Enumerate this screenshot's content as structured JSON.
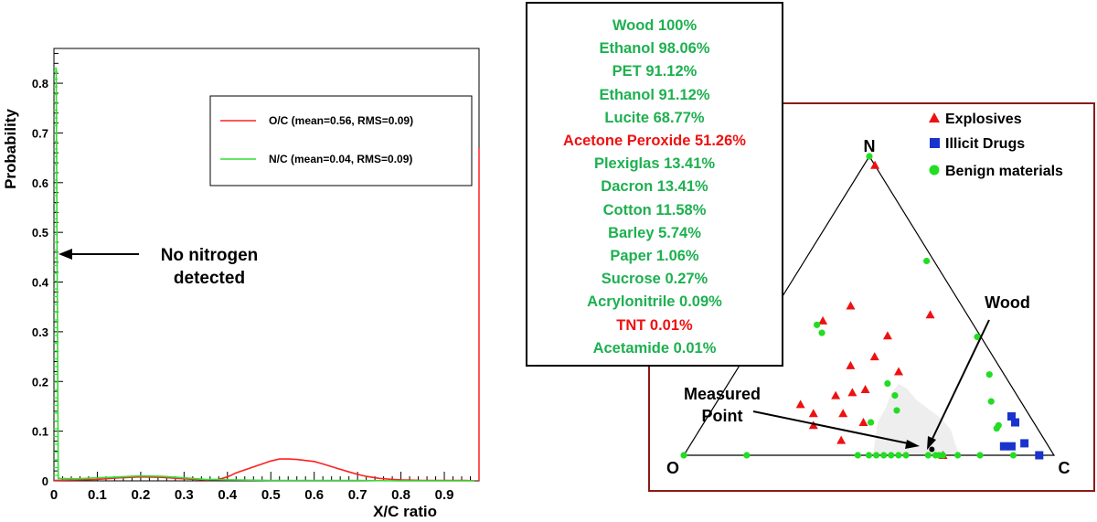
{
  "chart_data": [
    {
      "type": "line",
      "xlabel": "X/C ratio",
      "ylabel": "Probability",
      "xlim": [
        0,
        0.98
      ],
      "ylim": [
        0,
        0.87
      ],
      "x_ticks": [
        "0",
        "0.1",
        "0.2",
        "0.3",
        "0.4",
        "0.5",
        "0.6",
        "0.7",
        "0.8",
        "0.9"
      ],
      "y_ticks": [
        "0",
        "0.1",
        "0.2",
        "0.3",
        "0.4",
        "0.5",
        "0.6",
        "0.7",
        "0.8"
      ],
      "legend_position": "top-right",
      "series": [
        {
          "name": "O/C (mean=0.56, RMS=0.09)",
          "color": "#ff2020",
          "x": [
            0,
            0.05,
            0.1,
            0.15,
            0.2,
            0.25,
            0.3,
            0.35,
            0.38,
            0.4,
            0.42,
            0.45,
            0.48,
            0.5,
            0.52,
            0.54,
            0.56,
            0.58,
            0.6,
            0.62,
            0.65,
            0.68,
            0.7,
            0.72,
            0.75,
            0.78,
            0.8,
            0.85,
            0.9,
            0.95,
            0.97
          ],
          "y": [
            0.001,
            0.002,
            0.003,
            0.006,
            0.008,
            0.007,
            0.004,
            0.002,
            0.003,
            0.008,
            0.016,
            0.025,
            0.034,
            0.04,
            0.044,
            0.044,
            0.043,
            0.041,
            0.039,
            0.034,
            0.026,
            0.018,
            0.013,
            0.009,
            0.005,
            0.003,
            0.002,
            0.001,
            0.001,
            0.001,
            0.0
          ]
        },
        {
          "name": "N/C (mean=0.04, RMS=0.09)",
          "color": "#33dd33",
          "x": [
            0,
            0.005,
            0.01,
            0.05,
            0.1,
            0.15,
            0.2,
            0.25,
            0.3,
            0.35,
            0.4,
            0.5,
            0.6,
            0.7,
            0.8,
            0.9,
            0.97
          ],
          "y": [
            0.83,
            0.83,
            0.005,
            0.004,
            0.006,
            0.008,
            0.01,
            0.009,
            0.006,
            0.003,
            0.002,
            0.001,
            0.001,
            0.001,
            0.0,
            0.0,
            0.0
          ]
        }
      ],
      "annotations": [
        "No nitrogen",
        "detected"
      ]
    },
    {
      "type": "scatter",
      "subtype": "ternary",
      "vertex_labels": [
        "N",
        "O",
        "C"
      ],
      "legend_position": "top-right",
      "series": [
        {
          "name": "Explosives",
          "color": "#ee1111",
          "marker": "triangle",
          "points": [
            [
              0.47,
              0.1,
              0.43
            ],
            [
              0.5,
              0.3,
              0.2
            ],
            [
              0.45,
              0.4,
              0.15
            ],
            [
              0.4,
              0.25,
              0.35
            ],
            [
              0.33,
              0.32,
              0.35
            ],
            [
              0.3,
              0.4,
              0.3
            ],
            [
              0.28,
              0.28,
              0.44
            ],
            [
              0.22,
              0.4,
              0.38
            ],
            [
              0.21,
              0.44,
              0.35
            ],
            [
              0.2,
              0.49,
              0.31
            ],
            [
              0.17,
              0.6,
              0.23
            ],
            [
              0.14,
              0.58,
              0.28
            ],
            [
              0.14,
              0.5,
              0.36
            ],
            [
              0.1,
              0.6,
              0.3
            ],
            [
              0.11,
              0.46,
              0.43
            ],
            [
              0.05,
              0.55,
              0.4
            ],
            [
              0.0,
              0.3,
              0.7
            ],
            [
              0.97,
              0.0,
              0.03
            ]
          ]
        },
        {
          "name": "Illicit Drugs",
          "color": "#1a33cc",
          "marker": "square",
          "points": [
            [
              0.11,
              0.05,
              0.84
            ],
            [
              0.13,
              0.05,
              0.82
            ],
            [
              0.03,
              0.1,
              0.87
            ],
            [
              0.04,
              0.06,
              0.9
            ],
            [
              0.03,
              0.12,
              0.85
            ],
            [
              0.0,
              0.04,
              0.96
            ]
          ]
        },
        {
          "name": "Benign materials",
          "color": "#22dd22",
          "marker": "circle",
          "points": [
            [
              1.0,
              0.0,
              0.0
            ],
            [
              0.61,
              0.63,
              0.25
            ],
            [
              0.65,
              0.63,
              0.21
            ],
            [
              0.65,
              0.02,
              0.33
            ],
            [
              0.46,
              0.73,
              0.0
            ],
            [
              0.4,
              0.01,
              0.6
            ],
            [
              0.27,
              0.04,
              0.69
            ],
            [
              0.2,
              0.33,
              0.47
            ],
            [
              0.24,
              0.33,
              0.43
            ],
            [
              0.15,
              0.35,
              0.5
            ],
            [
              0.18,
              0.08,
              0.74
            ],
            [
              0.11,
              0.44,
              0.45
            ],
            [
              0.1,
              0.1,
              0.8
            ],
            [
              0.09,
              0.11,
              0.8
            ],
            [
              0.0,
              1.0,
              0.0
            ],
            [
              0.0,
              0.83,
              0.17
            ],
            [
              0.0,
              0.53,
              0.47
            ],
            [
              0.0,
              0.5,
              0.5
            ],
            [
              0.0,
              0.48,
              0.52
            ],
            [
              0.0,
              0.46,
              0.54
            ],
            [
              0.0,
              0.44,
              0.56
            ],
            [
              0.0,
              0.42,
              0.58
            ],
            [
              0.0,
              0.4,
              0.6
            ],
            [
              0.0,
              0.34,
              0.66
            ],
            [
              0.0,
              0.32,
              0.68
            ],
            [
              0.0,
              0.3,
              0.7
            ],
            [
              0.0,
              0.26,
              0.74
            ],
            [
              0.0,
              0.2,
              0.8
            ],
            [
              0.0,
              0.11,
              0.89
            ],
            [
              0.0,
              0.31,
              0.69
            ]
          ]
        }
      ],
      "measured_point": [
        0.02,
        0.32,
        0.66
      ],
      "annotations": [
        "Measured",
        "Point",
        "Wood"
      ]
    }
  ],
  "match_list": [
    {
      "label": "Wood 100%",
      "color": "#1eb050"
    },
    {
      "label": "Ethanol 98.06%",
      "color": "#1eb050"
    },
    {
      "label": "PET 91.12%",
      "color": "#1eb050"
    },
    {
      "label": "Ethanol 91.12%",
      "color": "#1eb050"
    },
    {
      "label": "Lucite 68.77%",
      "color": "#1eb050"
    },
    {
      "label": "Acetone Peroxide 51.26%",
      "color": "#ee1111"
    },
    {
      "label": "Plexiglas 13.41%",
      "color": "#1eb050"
    },
    {
      "label": "Dacron 13.41%",
      "color": "#1eb050"
    },
    {
      "label": "Cotton 11.58%",
      "color": "#1eb050"
    },
    {
      "label": "Barley 5.74%",
      "color": "#1eb050"
    },
    {
      "label": "Paper 1.06%",
      "color": "#1eb050"
    },
    {
      "label": "Sucrose 0.27%",
      "color": "#1eb050"
    },
    {
      "label": "Acrylonitrile 0.09%",
      "color": "#1eb050"
    },
    {
      "label": "TNT 0.01%",
      "color": "#ee1111"
    },
    {
      "label": "Acetamide 0.01%",
      "color": "#1eb050"
    }
  ]
}
